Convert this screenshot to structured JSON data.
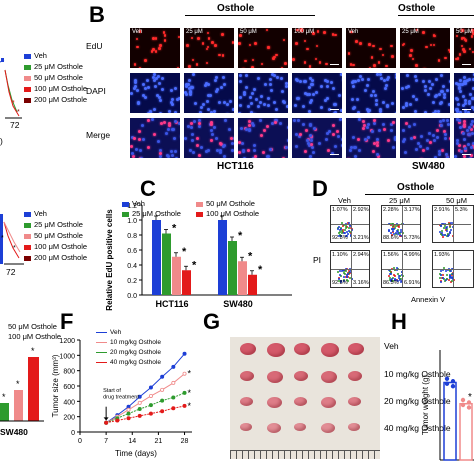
{
  "panels": {
    "B": "B",
    "C": "C",
    "D": "D",
    "F": "F",
    "G": "G",
    "H": "H"
  },
  "left_fragments": {
    "top": {
      "legend": [
        "Veh",
        "25 μM Osthole",
        "50 μM Osthole",
        "100 μM Osthole",
        "200 μM Osthole"
      ],
      "x_tick": "72",
      "extra": ")"
    },
    "mid": {
      "legend": [
        "Veh",
        "25 μM Osthole",
        "50 μM Osthole",
        "100 μM Osthole",
        "200 μM Osthole"
      ],
      "x_tick": "72"
    },
    "bottom": {
      "legend": [
        "50 μM Osthole",
        "100 μM Osthole"
      ],
      "x_label": "SW480"
    }
  },
  "colors": {
    "veh": "#1d3fd6",
    "c25": "#2e9b2e",
    "c50": "#f08a8a",
    "c100": "#e31a1a",
    "c200": "#7a0000"
  },
  "panelB": {
    "osthole": "Osthole",
    "columns": [
      "Veh",
      "25 μM",
      "50 μM",
      "100 μM",
      "Veh",
      "25 μM",
      "50 μM"
    ],
    "rows": [
      "EdU",
      "DAPI",
      "Merge"
    ],
    "cells": [
      "HCT116",
      "SW480"
    ]
  },
  "panelC": {
    "ylabel": "Relative EdU positive cells",
    "legend": [
      "Veh",
      "25 μM Osthole",
      "50 μM Osthole",
      "100 μM Osthole"
    ],
    "y_ticks": [
      "0.0",
      "0.2",
      "0.4",
      "0.6",
      "0.8",
      "1.0",
      "1.2"
    ],
    "star": "*"
  },
  "chart_data": [
    {
      "type": "bar",
      "categories": [
        "HCT116",
        "SW480"
      ],
      "series": [
        {
          "name": "Veh",
          "values": [
            1.0,
            1.0
          ]
        },
        {
          "name": "25 μM Osthole",
          "values": [
            0.82,
            0.72
          ]
        },
        {
          "name": "50 μM Osthole",
          "values": [
            0.51,
            0.45
          ]
        },
        {
          "name": "100 μM Osthole",
          "values": [
            0.33,
            0.27
          ]
        }
      ],
      "ylabel": "Relative EdU positive cells",
      "ylim": [
        0,
        1.2
      ]
    },
    {
      "type": "line",
      "x": [
        0,
        7,
        10,
        13,
        16,
        19,
        22,
        25,
        28
      ],
      "series": [
        {
          "name": "Veh",
          "values": [
            0,
            120,
            220,
            330,
            460,
            580,
            720,
            850,
            1020
          ]
        },
        {
          "name": "10 mg/kg Osthole",
          "values": [
            0,
            120,
            200,
            290,
            380,
            470,
            550,
            640,
            760
          ]
        },
        {
          "name": "20 mg/kg Osthole",
          "values": [
            0,
            120,
            180,
            240,
            300,
            350,
            410,
            450,
            510
          ]
        },
        {
          "name": "40 mg/kg Osthole",
          "values": [
            0,
            120,
            150,
            180,
            210,
            240,
            270,
            310,
            340
          ]
        }
      ],
      "xlabel": "Time (days)",
      "ylabel": "Tumor size (mm³)",
      "ylim": [
        0,
        1200
      ],
      "xlim": [
        0,
        30
      ]
    },
    {
      "type": "bar",
      "categories": [
        "Veh",
        "10 mg/kg"
      ],
      "values": [
        0.62,
        0.45
      ],
      "ylabel": "Tumor weight (g)"
    }
  ],
  "panelD": {
    "osthole": "Osthole",
    "columns": [
      "Veh",
      "25 μM",
      "50 μM"
    ],
    "ylabel": "PI",
    "xlabel": "Annexin V",
    "quadrants": [
      [
        "1.07%",
        "2.92%",
        "92.8%",
        "3.21%"
      ],
      [
        "2.28%",
        "3.17%",
        "88.6%",
        "5.73%"
      ],
      [
        "2.91%",
        "5.3%",
        "",
        ""
      ],
      [
        "1.10%",
        "2.94%",
        "92.8%",
        "3.16%"
      ],
      [
        "1.56%",
        "4.99%",
        "86.5%",
        "6.91%"
      ],
      [
        "1.93%",
        "",
        "",
        ""
      ]
    ]
  },
  "panelF": {
    "ylabel": "Tumor size (mm³)",
    "xlabel": "Time (days)",
    "legend": [
      "Veh",
      "10 mg/kg Osthole",
      "20 mg/kg Osthole",
      "40 mg/kg Osthole"
    ],
    "x_ticks": [
      "0",
      "7",
      "14",
      "21",
      "28"
    ],
    "y_ticks": [
      "0",
      "200",
      "400",
      "600",
      "800",
      "1000",
      "1200"
    ],
    "annotation": "Start of drug treatment",
    "star": "*"
  },
  "panelG": {
    "labels": [
      "Veh",
      "10 mg/kg Osthole",
      "20 mg/kg Osthole",
      "40 mg/kg Osthole"
    ]
  },
  "panelH": {
    "ylabel": "Tumor weight (g)",
    "star": "*"
  }
}
